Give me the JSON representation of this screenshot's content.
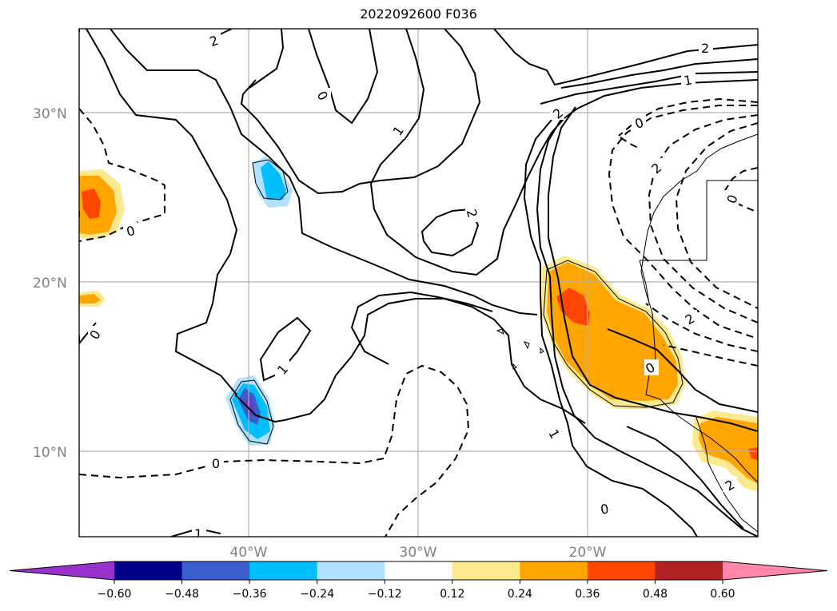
{
  "title": "2022092600 F036",
  "map": {
    "latitude_labels": [
      "30°N",
      "20°N",
      "10°N"
    ],
    "longitude_labels": [
      "40°W",
      "30°W",
      "20°W"
    ],
    "contour_labels": [
      "2",
      "0",
      "1",
      "2",
      "0",
      "1",
      "2",
      "0",
      "2",
      "2",
      "0",
      "0",
      "1",
      "0",
      "1",
      "0",
      "1",
      "2",
      "0",
      "2"
    ]
  },
  "colorbar": {
    "tick_labels": [
      "−0.60",
      "−0.48",
      "−0.36",
      "−0.24",
      "−0.12",
      "0.12",
      "0.24",
      "0.36",
      "0.48",
      "0.60"
    ],
    "colors": [
      "#9932cc",
      "#00008b",
      "#3a5fcd",
      "#00bfff",
      "#b0e2ff",
      "#ffffff",
      "#fce98d",
      "#ffa500",
      "#ff4500",
      "#b22222",
      "#ff88aa"
    ],
    "extend": "both"
  }
}
